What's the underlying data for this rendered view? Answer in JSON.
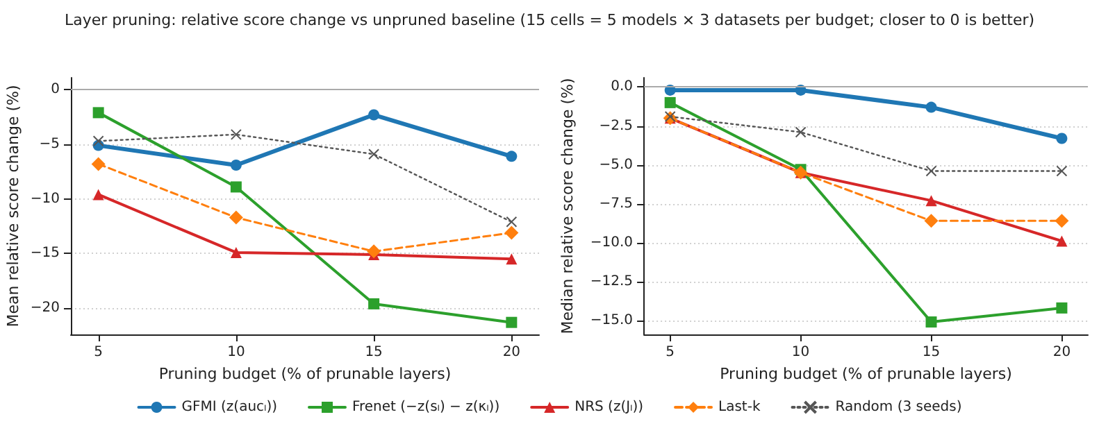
{
  "chart_data": [
    {
      "type": "line",
      "title": "Layer pruning: relative score change vs unpruned baseline (15 cells = 5 models × 3 datasets per budget; closer to 0 is better)",
      "xlabel": "Pruning budget (% of prunable layers)",
      "ylabel": "Mean relative score change (%)",
      "x": [
        5,
        10,
        15,
        20
      ],
      "xlim": [
        4,
        21
      ],
      "xticks": [
        5,
        10,
        15,
        20
      ],
      "ylim": [
        -22.4,
        1.1
      ],
      "yticks": [
        {
          "value": -20,
          "label": "−20"
        },
        {
          "value": -15,
          "label": "−15"
        },
        {
          "value": -10,
          "label": "−10"
        },
        {
          "value": -5,
          "label": "−5"
        },
        {
          "value": 0,
          "label": "0"
        }
      ],
      "grid": "y",
      "legend": "bottom",
      "ref_lines": [
        {
          "axis": "y",
          "value": 0,
          "color": "#aaaaaa"
        }
      ],
      "series": [
        {
          "name": "GFMI (z(aucₗ))",
          "color": "#1f77b4",
          "marker": "circle",
          "line_style": "solid",
          "values": [
            -5.1,
            -6.9,
            -2.3,
            -6.1
          ]
        },
        {
          "name": "Frenet (−z(sₗ) − z(κₗ))",
          "color": "#2ca02c",
          "marker": "square",
          "line_style": "solid",
          "values": [
            -2.1,
            -8.9,
            -19.6,
            -21.3
          ]
        },
        {
          "name": "NRS (z(Jₗ))",
          "color": "#d62728",
          "marker": "triangle",
          "line_style": "solid",
          "values": [
            -9.6,
            -14.9,
            -15.1,
            -15.5
          ]
        },
        {
          "name": "Last-k",
          "color": "#ff7f0e",
          "marker": "diamond",
          "line_style": "dashed",
          "values": [
            -6.8,
            -11.7,
            -14.8,
            -13.1
          ]
        },
        {
          "name": "Random (3 seeds)",
          "color": "#555555",
          "marker": "cross",
          "line_style": "dotted",
          "values": [
            -4.7,
            -4.1,
            -5.9,
            -12.1
          ]
        }
      ]
    },
    {
      "type": "line",
      "xlabel": "Pruning budget (% of prunable layers)",
      "ylabel": "Median relative score change (%)",
      "x": [
        5,
        10,
        15,
        20
      ],
      "xlim": [
        4,
        21
      ],
      "xticks": [
        5,
        10,
        15,
        20
      ],
      "ylim": [
        -15.9,
        0.6
      ],
      "yticks": [
        {
          "value": -15,
          "label": "−15.0"
        },
        {
          "value": -12.5,
          "label": "−12.5"
        },
        {
          "value": -10,
          "label": "−10.0"
        },
        {
          "value": -7.5,
          "label": "−7.5"
        },
        {
          "value": -5,
          "label": "−5.0"
        },
        {
          "value": -2.5,
          "label": "−2.5"
        },
        {
          "value": 0,
          "label": "0.0"
        }
      ],
      "grid": "y",
      "ref_lines": [
        {
          "axis": "y",
          "value": 0,
          "color": "#aaaaaa"
        }
      ],
      "series": [
        {
          "color": "#1f77b4",
          "marker": "circle",
          "line_style": "solid",
          "values": [
            -0.2,
            -0.2,
            -1.3,
            -3.3
          ]
        },
        {
          "color": "#2ca02c",
          "marker": "square",
          "line_style": "solid",
          "values": [
            -1.0,
            -5.3,
            -15.1,
            -14.2
          ]
        },
        {
          "color": "#d62728",
          "marker": "triangle",
          "line_style": "solid",
          "values": [
            -2.0,
            -5.5,
            -7.3,
            -9.9
          ]
        },
        {
          "color": "#ff7f0e",
          "marker": "diamond",
          "line_style": "dashed",
          "values": [
            -2.0,
            -5.5,
            -8.6,
            -8.6
          ]
        },
        {
          "color": "#555555",
          "marker": "cross",
          "line_style": "dotted",
          "values": [
            -1.9,
            -2.9,
            -5.4,
            -5.4
          ]
        }
      ]
    }
  ]
}
